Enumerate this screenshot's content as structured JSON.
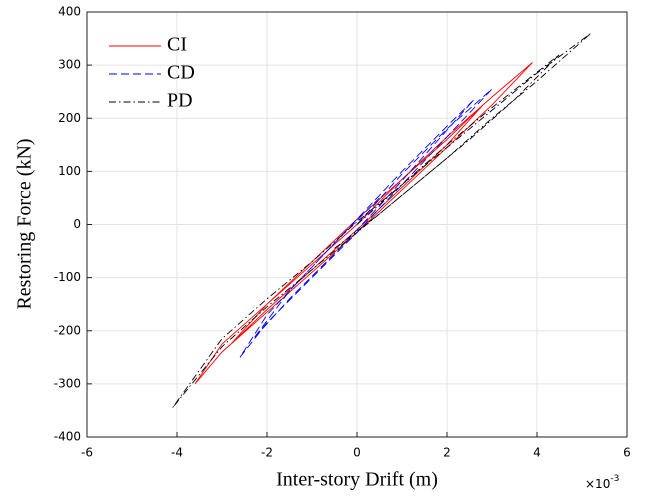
{
  "chart_data": {
    "type": "line",
    "xlabel": "Inter-story Drift (m)",
    "ylabel": "Restoring Force (kN)",
    "x_multiplier": {
      "base": "×10",
      "exponent": "-3"
    },
    "xlim": [
      -6,
      6
    ],
    "xticks": [
      -6,
      -4,
      -2,
      0,
      2,
      4,
      6
    ],
    "ylim": [
      -400,
      400
    ],
    "yticks": [
      -400,
      -300,
      -200,
      -100,
      0,
      100,
      200,
      300,
      400
    ],
    "grid": true,
    "legend": "upper left",
    "series": [
      {
        "name": "CI",
        "color": "#ff0000",
        "dash": "solid",
        "x": [
          0,
          1,
          2,
          3,
          3.9,
          3,
          2,
          1,
          0,
          -1,
          -2,
          -3,
          -3.6,
          -3,
          -2,
          -1,
          0,
          1,
          2,
          2.8,
          2,
          1,
          0,
          -1,
          -2,
          -2.8,
          -2,
          -1,
          0
        ],
        "values": [
          0,
          85,
          165,
          240,
          305,
          225,
          145,
          65,
          -15,
          -90,
          -165,
          -240,
          -300,
          -225,
          -150,
          -70,
          10,
          85,
          160,
          225,
          150,
          70,
          -10,
          -85,
          -160,
          -225,
          -150,
          -75,
          0
        ]
      },
      {
        "name": "CD",
        "color": "#0000ff",
        "dash": "dashed",
        "x": [
          0,
          1,
          2,
          3,
          2,
          1,
          0,
          -1,
          -2,
          -2.6,
          -2,
          -1,
          0,
          1,
          2,
          2.6,
          1.5,
          0.5,
          -0.5,
          -1.5,
          -2.3,
          -1.5,
          -0.5,
          0.5
        ],
        "values": [
          0,
          95,
          180,
          255,
          165,
          75,
          -15,
          -100,
          -185,
          -250,
          -170,
          -80,
          10,
          100,
          185,
          235,
          130,
          35,
          -55,
          -140,
          -215,
          -125,
          -35,
          50
        ]
      },
      {
        "name": "PD",
        "color": "#000000",
        "dash": "dashdot",
        "x": [
          0,
          1,
          2,
          3,
          4,
          5.2,
          4,
          3,
          2,
          1,
          0,
          -1,
          -2,
          -3,
          -4.1,
          -3,
          -2,
          -1,
          0,
          1,
          2,
          3,
          4.5,
          3.5,
          2.5,
          1.5,
          0.5,
          -0.5
        ],
        "values": [
          0,
          75,
          145,
          215,
          285,
          360,
          270,
          200,
          125,
          55,
          -15,
          -85,
          -155,
          -230,
          -345,
          -215,
          -140,
          -70,
          5,
          75,
          150,
          220,
          320,
          235,
          160,
          90,
          20,
          -45
        ]
      }
    ]
  }
}
